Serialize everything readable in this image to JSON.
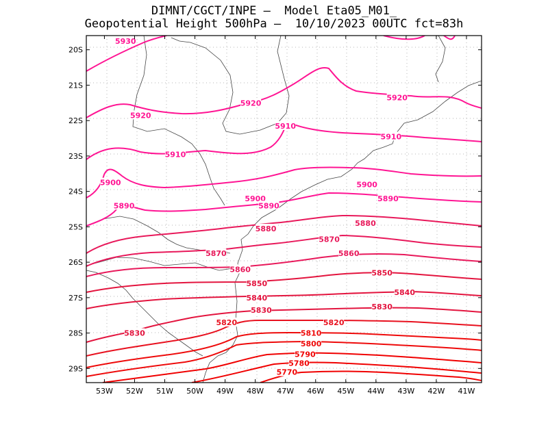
{
  "header": {
    "line1": "DIMNT/CGCT/INPE –  Model Eta05_M01_",
    "line2": "Geopotential Height 500hPa –  10/10/2023 00UTC fct=83h"
  },
  "map_data": {
    "type": "contour",
    "lon_range": [
      -53.6,
      -40.5
    ],
    "lat_range": [
      -19.6,
      -29.4
    ],
    "x_tick_labels": [
      "53W",
      "52W",
      "51W",
      "50W",
      "49W",
      "48W",
      "47W",
      "46W",
      "45W",
      "44W",
      "43W",
      "42W",
      "41W"
    ],
    "y_tick_labels": [
      "20S",
      "21S",
      "22S",
      "23S",
      "24S",
      "25S",
      "26S",
      "27S",
      "28S",
      "29S"
    ],
    "contour_labels": [
      {
        "text": "5930",
        "lon": -52.3,
        "lat": -19.75,
        "color": "#ff1493"
      },
      {
        "text": "5920",
        "lon": -51.8,
        "lat": -21.85,
        "color": "#ff1493"
      },
      {
        "text": "5920",
        "lon": -48.15,
        "lat": -21.5,
        "color": "#ff1493"
      },
      {
        "text": "5920",
        "lon": -43.3,
        "lat": -21.35,
        "color": "#ff1493"
      },
      {
        "text": "5910",
        "lon": -50.65,
        "lat": -22.95,
        "color": "#ff1493"
      },
      {
        "text": "5910",
        "lon": -47.0,
        "lat": -22.15,
        "color": "#ff1493"
      },
      {
        "text": "5910",
        "lon": -43.5,
        "lat": -22.45,
        "color": "#ff1493"
      },
      {
        "text": "5900",
        "lon": -52.8,
        "lat": -23.75,
        "color": "#ff1493"
      },
      {
        "text": "5900",
        "lon": -48.0,
        "lat": -24.2,
        "color": "#ff1493"
      },
      {
        "text": "5900",
        "lon": -44.3,
        "lat": -23.8,
        "color": "#ff1493"
      },
      {
        "text": "5890",
        "lon": -52.35,
        "lat": -24.4,
        "color": "#ff1493"
      },
      {
        "text": "5890",
        "lon": -47.55,
        "lat": -24.4,
        "color": "#ff1493"
      },
      {
        "text": "5890",
        "lon": -43.6,
        "lat": -24.2,
        "color": "#ff1493"
      },
      {
        "text": "5880",
        "lon": -47.65,
        "lat": -25.05,
        "color": "#e8185a"
      },
      {
        "text": "5880",
        "lon": -44.35,
        "lat": -24.9,
        "color": "#e8185a"
      },
      {
        "text": "5870",
        "lon": -49.3,
        "lat": -25.75,
        "color": "#e8185a"
      },
      {
        "text": "5870",
        "lon": -45.55,
        "lat": -25.35,
        "color": "#e8185a"
      },
      {
        "text": "5860",
        "lon": -48.5,
        "lat": -26.2,
        "color": "#e8185a"
      },
      {
        "text": "5860",
        "lon": -44.9,
        "lat": -25.75,
        "color": "#e8185a"
      },
      {
        "text": "5850",
        "lon": -47.95,
        "lat": -26.6,
        "color": "#e3143e"
      },
      {
        "text": "5850",
        "lon": -43.8,
        "lat": -26.3,
        "color": "#e3143e"
      },
      {
        "text": "5840",
        "lon": -47.95,
        "lat": -27.0,
        "color": "#e3143e"
      },
      {
        "text": "5840",
        "lon": -43.05,
        "lat": -26.85,
        "color": "#e3143e"
      },
      {
        "text": "5830",
        "lon": -47.8,
        "lat": -27.35,
        "color": "#e3143e"
      },
      {
        "text": "5830",
        "lon": -43.8,
        "lat": -27.25,
        "color": "#e3143e"
      },
      {
        "text": "5830",
        "lon": -52.0,
        "lat": -28.0,
        "color": "#e3143e"
      },
      {
        "text": "5820",
        "lon": -48.95,
        "lat": -27.7,
        "color": "#e8101e"
      },
      {
        "text": "5820",
        "lon": -45.4,
        "lat": -27.7,
        "color": "#e8101e"
      },
      {
        "text": "5810",
        "lon": -46.15,
        "lat": -28.0,
        "color": "#ee0a0a"
      },
      {
        "text": "5800",
        "lon": -46.15,
        "lat": -28.3,
        "color": "#ee0a0a"
      },
      {
        "text": "5790",
        "lon": -46.35,
        "lat": -28.6,
        "color": "#f00000"
      },
      {
        "text": "5780",
        "lon": -46.55,
        "lat": -28.85,
        "color": "#f00000"
      },
      {
        "text": "5770",
        "lon": -46.95,
        "lat": -29.1,
        "color": "#f00000"
      }
    ]
  }
}
